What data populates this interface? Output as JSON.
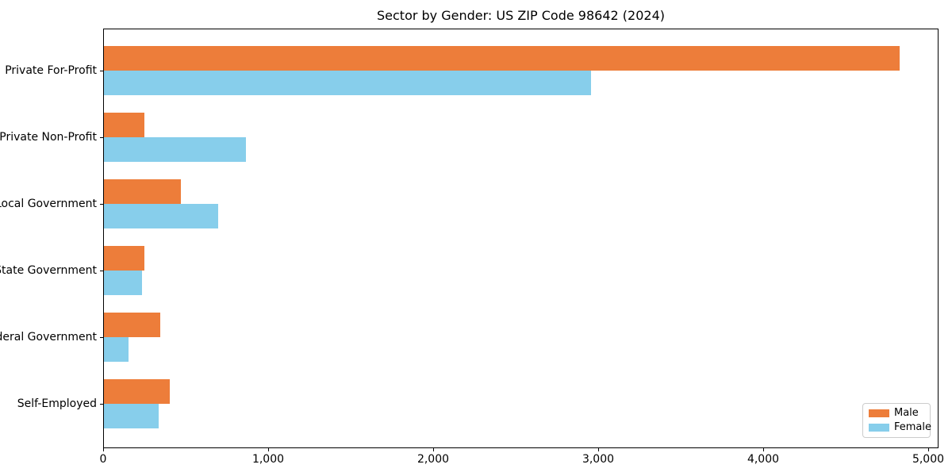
{
  "chart_data": {
    "type": "bar",
    "orientation": "horizontal",
    "title": "Sector by Gender: US ZIP Code 98642 (2024)",
    "xlabel": "",
    "ylabel": "",
    "categories": [
      "Private For-Profit",
      "Private Non-Profit",
      "Local Government",
      "State Government",
      "Federal Government",
      "Self-Employed"
    ],
    "series": [
      {
        "name": "Male",
        "color": "#ed7d3a",
        "values": [
          4820,
          245,
          465,
          245,
          340,
          400
        ]
      },
      {
        "name": "Female",
        "color": "#87ceeb",
        "values": [
          2950,
          860,
          690,
          230,
          150,
          330
        ]
      }
    ],
    "xlim": [
      0,
      5061
    ],
    "xticks": [
      0,
      1000,
      2000,
      3000,
      4000,
      5000
    ],
    "xtick_labels": [
      "0",
      "1,000",
      "2,000",
      "3,000",
      "4,000",
      "5,000"
    ],
    "grid": false,
    "legend_position": "lower right",
    "axis_color": "#000000",
    "legend_border_color": "#cccccc"
  }
}
